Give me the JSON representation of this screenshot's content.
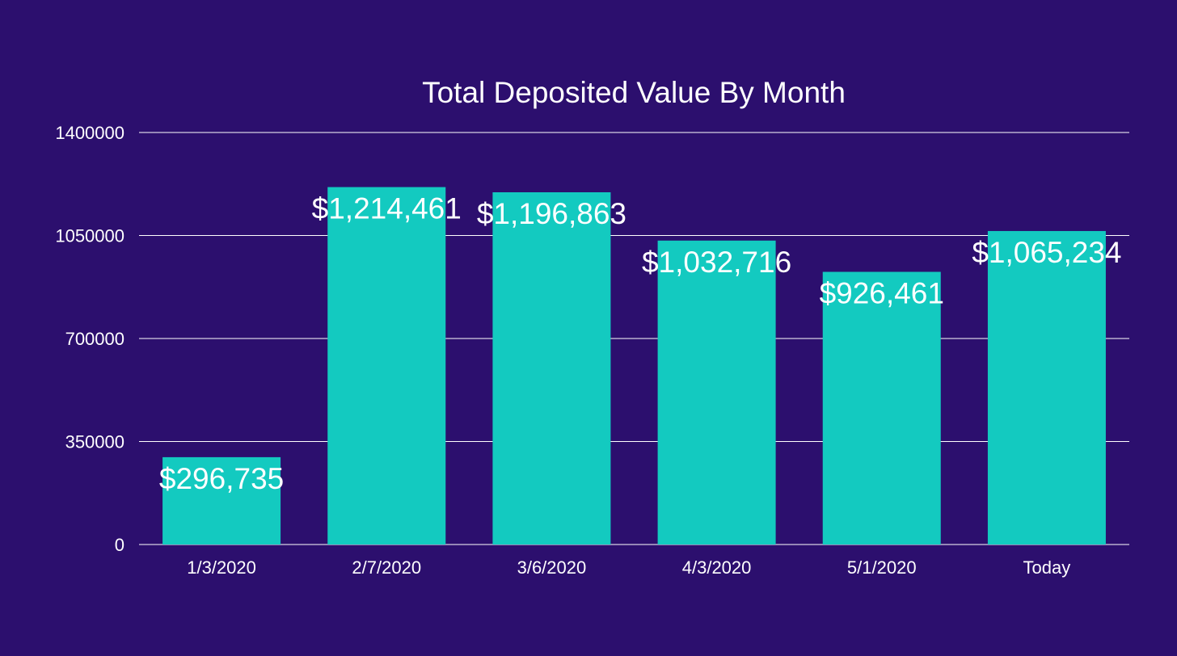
{
  "chart_data": {
    "type": "bar",
    "title": "Total Deposited Value By Month",
    "xlabel": "",
    "ylabel": "",
    "categories": [
      "1/3/2020",
      "2/7/2020",
      "3/6/2020",
      "4/3/2020",
      "5/1/2020",
      "Today"
    ],
    "values": [
      296735,
      1214461,
      1196863,
      1032716,
      926461,
      1065234
    ],
    "data_labels": [
      "$296,735",
      "$1,214,461",
      "$1,196,863",
      "$1,032,716",
      "$926,461",
      "$1,065,234"
    ],
    "ylim": [
      0,
      1400000
    ],
    "yticks": [
      0,
      350000,
      700000,
      1050000,
      1400000
    ],
    "ytick_labels": [
      "0",
      "350000",
      "700000",
      "1050000",
      "1400000"
    ],
    "grid": true,
    "legend": "none",
    "colors": {
      "background": "#2c0f6e",
      "bar": "#13cac0",
      "gridline": "#ffffff",
      "text": "#ffffff"
    }
  }
}
